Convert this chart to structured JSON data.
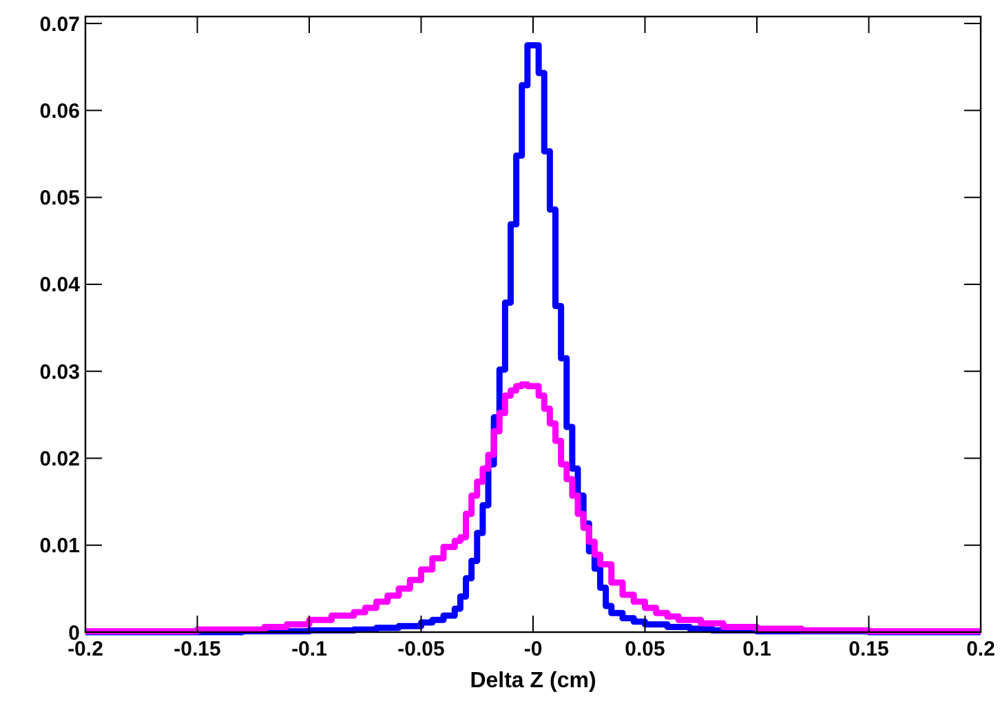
{
  "chart_data": {
    "type": "step",
    "xlabel": "Delta Z (cm)",
    "xlim": [
      -0.2,
      0.2
    ],
    "ylim": [
      0,
      0.0708
    ],
    "xticks": [
      -0.2,
      -0.15,
      -0.1,
      -0.05,
      {
        "value": 0,
        "label": "-0"
      },
      0.05,
      0.1,
      0.15,
      0.2
    ],
    "yticks": [
      0,
      0.01,
      0.02,
      0.03,
      0.04,
      0.05,
      0.06,
      0.07
    ],
    "grid": false,
    "series": [
      {
        "color": "#0000ff",
        "x": [
          -0.2,
          -0.13,
          -0.1,
          -0.08,
          -0.07,
          -0.06,
          -0.05,
          -0.045,
          -0.04,
          -0.035,
          -0.0325,
          -0.03,
          -0.0275,
          -0.025,
          -0.0225,
          -0.02,
          -0.0175,
          -0.015,
          -0.0125,
          -0.01,
          -0.0075,
          -0.005,
          -0.0025,
          0,
          0.0025,
          0.005,
          0.0075,
          0.01,
          0.0125,
          0.015,
          0.0175,
          0.02,
          0.0225,
          0.025,
          0.0275,
          0.03,
          0.0325,
          0.035,
          0.04,
          0.045,
          0.05,
          0.06,
          0.07,
          0.08,
          0.1,
          0.15,
          0.2
        ],
        "values": [
          0,
          0.0001,
          0.0002,
          0.0003,
          0.0005,
          0.0007,
          0.0011,
          0.0014,
          0.0019,
          0.0027,
          0.0041,
          0.0062,
          0.0082,
          0.0114,
          0.0146,
          0.0193,
          0.0247,
          0.0302,
          0.0379,
          0.0469,
          0.0548,
          0.0629,
          0.0675,
          0.0675,
          0.0643,
          0.0553,
          0.0486,
          0.0375,
          0.0315,
          0.0236,
          0.0188,
          0.0157,
          0.0125,
          0.0093,
          0.0073,
          0.0051,
          0.003,
          0.0022,
          0.0016,
          0.0012,
          0.0009,
          0.0006,
          0.0004,
          0.0002,
          0.0001,
          0,
          0
        ]
      },
      {
        "color": "#ff00ff",
        "x": [
          -0.2,
          -0.15,
          -0.12,
          -0.11,
          -0.1,
          -0.09,
          -0.08,
          -0.075,
          -0.07,
          -0.065,
          -0.06,
          -0.055,
          -0.05,
          -0.045,
          -0.04,
          -0.035,
          -0.0325,
          -0.03,
          -0.0275,
          -0.025,
          -0.0225,
          -0.02,
          -0.0175,
          -0.015,
          -0.0125,
          -0.01,
          -0.0075,
          -0.005,
          -0.0025,
          0,
          0.0025,
          0.005,
          0.0075,
          0.01,
          0.0125,
          0.015,
          0.0175,
          0.02,
          0.0225,
          0.025,
          0.0275,
          0.03,
          0.035,
          0.04,
          0.045,
          0.05,
          0.055,
          0.06,
          0.065,
          0.075,
          0.085,
          0.1,
          0.12,
          0.15,
          0.2
        ],
        "values": [
          0.0001,
          0.0003,
          0.0006,
          0.0009,
          0.0014,
          0.0019,
          0.0023,
          0.0028,
          0.0035,
          0.0042,
          0.005,
          0.006,
          0.0072,
          0.0085,
          0.0098,
          0.0105,
          0.0109,
          0.0136,
          0.0157,
          0.0173,
          0.0188,
          0.0204,
          0.0231,
          0.0252,
          0.0272,
          0.0278,
          0.0283,
          0.0285,
          0.0283,
          0.0283,
          0.0272,
          0.0257,
          0.024,
          0.022,
          0.0193,
          0.0176,
          0.0157,
          0.0136,
          0.012,
          0.0104,
          0.0089,
          0.0078,
          0.0057,
          0.0043,
          0.0035,
          0.0028,
          0.0022,
          0.0018,
          0.0014,
          0.001,
          0.0006,
          0.0004,
          0.0002,
          0.0001,
          0.0001
        ]
      }
    ]
  }
}
